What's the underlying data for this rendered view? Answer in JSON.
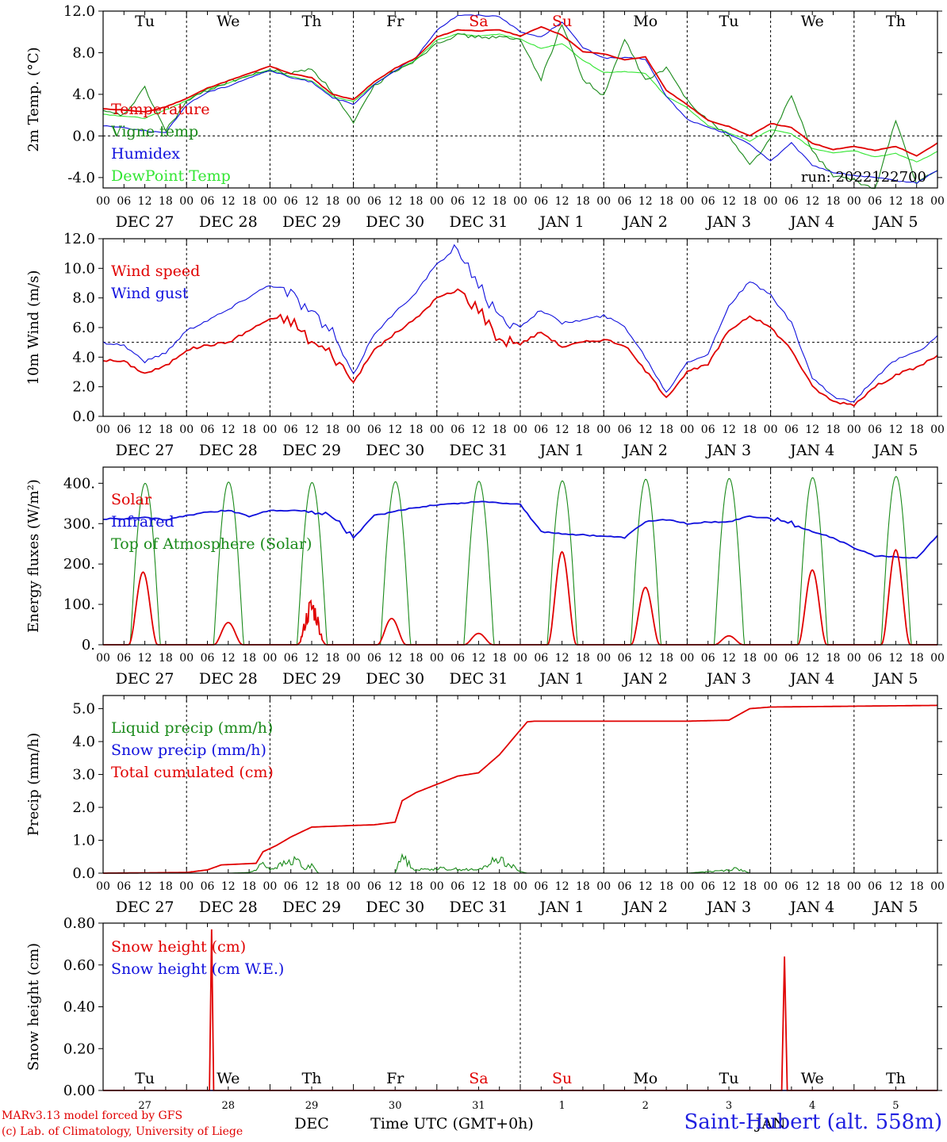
{
  "day_labels": [
    "Tu",
    "We",
    "Th",
    "Fr",
    "Sa",
    "Su",
    "Mo",
    "Tu",
    "We",
    "Th"
  ],
  "weekend_days": [
    "Sa",
    "Su"
  ],
  "hour_ticks": [
    "00",
    "06",
    "12",
    "18"
  ],
  "date_labels": [
    "DEC 27",
    "DEC 28",
    "DEC 29",
    "DEC 30",
    "DEC 31",
    "JAN  1",
    "JAN  2",
    "JAN  3",
    "JAN  4",
    "JAN  5"
  ],
  "snow_day_numbers": [
    "27",
    "28",
    "29",
    "30",
    "31",
    "1",
    "2",
    "3",
    "4",
    "5"
  ],
  "snow_month_labels": [
    "DEC",
    "JAN"
  ],
  "snow_xlabel": "Time UTC (GMT+0h)",
  "run_label": "run: 2022122700",
  "footer": {
    "credit1": "MARv3.13 model forced by GFS",
    "credit2": "(c) Lab. of Climatology, University of Liege",
    "station": "Saint-Hubert (alt. 558m)"
  },
  "colors": {
    "red": "#e00000",
    "green": "#1a8a1a",
    "blue": "#1010dd",
    "lightgreen": "#33e633"
  },
  "chart_data": [
    {
      "type": "line",
      "id": "temp",
      "ylabel": "2m Temp. (°C)",
      "ylim": [
        -5.0,
        12.0
      ],
      "yticks": [
        "-4.0",
        "0.0",
        "4.0",
        "8.0",
        "12.0"
      ],
      "x_hours": [
        0,
        6,
        12,
        18,
        24,
        30,
        36,
        42,
        48,
        54,
        60,
        66,
        72,
        78,
        84,
        90,
        96,
        102,
        108,
        114,
        120,
        126,
        132,
        138,
        144,
        150,
        156,
        162,
        168,
        174,
        180,
        186,
        192,
        198,
        204,
        210,
        216,
        222,
        228,
        234,
        240
      ],
      "series": [
        {
          "name": "Temperature",
          "color": "red",
          "values": [
            2.6,
            2.5,
            2.3,
            2.8,
            3.6,
            4.6,
            5.3,
            6.0,
            6.7,
            6.0,
            5.6,
            4.0,
            3.5,
            5.2,
            6.5,
            7.5,
            9.5,
            10.2,
            10.1,
            10.2,
            9.6,
            10.5,
            9.7,
            8.1,
            7.9,
            7.3,
            7.6,
            4.4,
            3.0,
            1.5,
            0.9,
            0.0,
            1.2,
            0.8,
            -0.7,
            -1.3,
            -1.0,
            -1.4,
            -1.0,
            -1.9,
            -0.7
          ]
        },
        {
          "name": "Vigne temp",
          "color": "green",
          "values": [
            2.3,
            2.0,
            4.6,
            0.5,
            3.3,
            4.4,
            5.2,
            5.8,
            6.3,
            6.0,
            6.5,
            4.2,
            1.2,
            4.8,
            6.3,
            7.3,
            9.0,
            9.7,
            9.5,
            9.5,
            9.2,
            5.5,
            10.8,
            5.5,
            3.8,
            9.3,
            5.3,
            6.5,
            3.5,
            1.5,
            0.0,
            -2.8,
            -0.3,
            3.9,
            -1.5,
            -3.8,
            -4.3,
            -5.1,
            1.5,
            -4.6,
            -3.3
          ]
        },
        {
          "name": "Humidex",
          "color": "blue",
          "values": [
            1.0,
            0.8,
            0.5,
            0.3,
            3.0,
            4.2,
            4.8,
            5.6,
            6.3,
            5.6,
            5.2,
            3.7,
            3.0,
            4.9,
            6.3,
            7.5,
            10.2,
            11.6,
            11.6,
            11.5,
            10.0,
            9.5,
            11.0,
            8.5,
            7.5,
            7.5,
            7.4,
            3.8,
            1.6,
            0.8,
            0.2,
            -0.8,
            -2.4,
            -0.7,
            -2.8,
            -3.5,
            -3.8,
            -4.0,
            -4.3,
            -4.5,
            -3.3
          ]
        },
        {
          "name": "DewPoint Temp",
          "color": "lightgreen",
          "values": [
            2.1,
            1.9,
            1.7,
            2.5,
            3.4,
            4.5,
            5.1,
            5.8,
            6.4,
            5.7,
            5.3,
            3.8,
            3.3,
            5.0,
            6.3,
            7.3,
            9.2,
            9.8,
            9.6,
            9.8,
            9.3,
            8.4,
            8.9,
            7.3,
            6.1,
            6.2,
            6.0,
            3.8,
            2.7,
            1.0,
            0.3,
            -0.5,
            0.6,
            0.2,
            -1.2,
            -1.6,
            -1.4,
            -2.0,
            -1.7,
            -2.5,
            -1.5
          ]
        }
      ],
      "ref_line": 0.0
    },
    {
      "type": "line",
      "id": "wind",
      "ylabel": "10m Wind (m/s)",
      "ylim": [
        0.0,
        12.0
      ],
      "yticks": [
        "0.0",
        "2.0",
        "4.0",
        "6.0",
        "8.0",
        "10.0",
        "12.0"
      ],
      "x_hours": [
        0,
        6,
        12,
        18,
        24,
        30,
        36,
        42,
        48,
        54,
        60,
        66,
        72,
        78,
        84,
        90,
        96,
        102,
        108,
        114,
        120,
        126,
        132,
        138,
        144,
        150,
        156,
        162,
        168,
        174,
        180,
        186,
        192,
        198,
        204,
        210,
        216,
        222,
        228,
        234,
        240
      ],
      "series": [
        {
          "name": "Wind speed",
          "color": "red",
          "values": [
            3.8,
            3.7,
            2.9,
            3.4,
            4.5,
            4.8,
            5.0,
            5.8,
            6.6,
            6.5,
            5.0,
            4.2,
            2.3,
            4.5,
            5.6,
            6.6,
            8.0,
            8.5,
            7.3,
            5.2,
            4.9,
            5.7,
            4.7,
            5.0,
            5.2,
            4.8,
            3.1,
            1.3,
            3.0,
            3.5,
            5.8,
            6.8,
            6.0,
            4.5,
            2.0,
            1.0,
            0.8,
            2.0,
            2.8,
            3.3,
            4.1
          ]
        },
        {
          "name": "Wind gust",
          "color": "blue",
          "values": [
            5.0,
            4.8,
            3.7,
            4.3,
            5.8,
            6.5,
            7.2,
            8.1,
            8.9,
            8.3,
            7.0,
            5.6,
            2.8,
            5.6,
            7.0,
            8.4,
            10.3,
            11.3,
            9.0,
            6.5,
            6.1,
            7.2,
            6.3,
            6.5,
            6.8,
            6.1,
            4.0,
            1.6,
            3.7,
            4.2,
            7.5,
            9.1,
            8.2,
            6.3,
            2.6,
            1.3,
            1.0,
            2.6,
            3.8,
            4.3,
            5.4
          ]
        }
      ],
      "ref_line": 5.0
    },
    {
      "type": "line",
      "id": "energy",
      "ylabel": "Energy fluxes (W/m²)",
      "ylim": [
        0.0,
        440.0
      ],
      "yticks": [
        "0.",
        "100.",
        "200.",
        "300.",
        "400."
      ],
      "series": [
        {
          "name": "Solar",
          "color": "red",
          "days": [
            {
              "peak": 180,
              "at": 11.5
            },
            {
              "peak": 55,
              "at": 12
            },
            {
              "peak": 105,
              "at": 12
            },
            {
              "peak": 65,
              "at": 11
            },
            {
              "peak": 28,
              "at": 12
            },
            {
              "peak": 230,
              "at": 12
            },
            {
              "peak": 142,
              "at": 12
            },
            {
              "peak": 22,
              "at": 12
            },
            {
              "peak": 185,
              "at": 12
            },
            {
              "peak": 235,
              "at": 12
            }
          ]
        },
        {
          "name": "Infrared",
          "color": "blue",
          "x_hours": [
            0,
            6,
            12,
            18,
            24,
            30,
            36,
            42,
            48,
            54,
            60,
            66,
            72,
            78,
            84,
            90,
            96,
            102,
            108,
            114,
            120,
            126,
            132,
            138,
            144,
            150,
            156,
            162,
            168,
            174,
            180,
            186,
            192,
            198,
            204,
            210,
            216,
            222,
            228,
            234,
            240
          ],
          "values": [
            312,
            312,
            315,
            310,
            320,
            328,
            333,
            318,
            333,
            333,
            330,
            320,
            265,
            320,
            330,
            340,
            347,
            350,
            355,
            352,
            348,
            280,
            275,
            272,
            269,
            265,
            305,
            310,
            300,
            304,
            305,
            318,
            313,
            300,
            280,
            265,
            240,
            220,
            218,
            215,
            270
          ]
        },
        {
          "name": "Top of Atmosphere (Solar)",
          "color": "green",
          "days": [
            {
              "peak": 400
            },
            {
              "peak": 403
            },
            {
              "peak": 402
            },
            {
              "peak": 404
            },
            {
              "peak": 405
            },
            {
              "peak": 406
            },
            {
              "peak": 410
            },
            {
              "peak": 412
            },
            {
              "peak": 414
            },
            {
              "peak": 417
            }
          ],
          "sunrise": 7.8,
          "sunset": 16.4
        }
      ]
    },
    {
      "type": "line",
      "id": "precip",
      "ylabel": "Precip (mm/h)",
      "ylim": [
        0.0,
        5.4
      ],
      "yticks": [
        "0.0",
        "1.0",
        "2.0",
        "3.0",
        "4.0",
        "5.0"
      ],
      "series": [
        {
          "name": "Liquid precip (mm/h)",
          "color": "green",
          "x_hours": [
            0,
            24,
            36,
            42,
            44,
            46,
            48,
            52,
            56,
            58,
            60,
            62,
            64,
            72,
            84,
            86,
            88,
            90,
            96,
            108,
            114,
            116,
            118,
            120,
            122,
            168,
            180,
            182,
            184,
            186,
            240
          ],
          "values": [
            0,
            0,
            0,
            0.02,
            0.1,
            0.35,
            0.12,
            0.3,
            0.42,
            0.1,
            0.3,
            0,
            0,
            0,
            0,
            0.55,
            0.3,
            0.1,
            0.15,
            0.1,
            0.5,
            0.3,
            0.2,
            0.05,
            0,
            0,
            0.1,
            0.15,
            0.08,
            0,
            0
          ]
        },
        {
          "name": "Snow precip (mm/h)",
          "color": "blue",
          "x_hours": [
            0,
            240
          ],
          "values": [
            0,
            0
          ]
        },
        {
          "name": "Total cumulated (cm)",
          "color": "red",
          "x_hours": [
            0,
            24,
            30,
            34,
            44,
            46,
            50,
            54,
            60,
            72,
            78,
            84,
            86,
            90,
            96,
            102,
            108,
            114,
            120,
            122,
            124,
            130,
            168,
            180,
            186,
            192,
            240
          ],
          "values": [
            0,
            0.02,
            0.1,
            0.25,
            0.3,
            0.65,
            0.85,
            1.1,
            1.4,
            1.45,
            1.47,
            1.55,
            2.2,
            2.45,
            2.7,
            2.95,
            3.05,
            3.6,
            4.35,
            4.6,
            4.62,
            4.62,
            4.62,
            4.65,
            5.0,
            5.05,
            5.1
          ]
        }
      ]
    },
    {
      "type": "line",
      "id": "snow",
      "ylabel": "Snow height (cm)",
      "ylim": [
        0.0,
        0.8
      ],
      "yticks": [
        "0.00",
        "0.20",
        "0.40",
        "0.60",
        "0.80"
      ],
      "series": [
        {
          "name": "Snow height (cm)",
          "color": "red",
          "x_hours": [
            0,
            30.6,
            31.2,
            31.8,
            195.2,
            196.0,
            196.8,
            240
          ],
          "values": [
            0,
            0,
            0.77,
            0,
            0,
            0.64,
            0,
            0
          ]
        },
        {
          "name": "Snow height (cm W.E.)",
          "color": "blue",
          "x_hours": [
            0,
            240
          ],
          "values": [
            0,
            0
          ]
        }
      ]
    }
  ]
}
